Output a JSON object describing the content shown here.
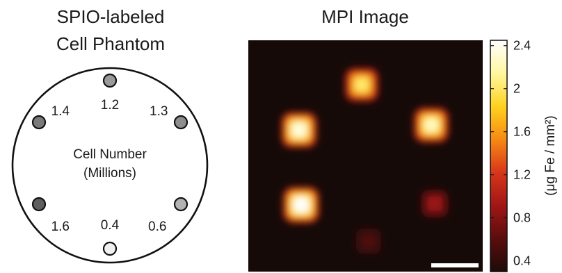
{
  "left_panel": {
    "title_line1": "SPIO-labeled",
    "title_line2": "Cell Phantom",
    "center_line1": "Cell Number",
    "center_line2": "(Millions)",
    "wells": [
      {
        "label": "1.2",
        "fill": "#9a9a9a"
      },
      {
        "label": "1.3",
        "fill": "#8d8d8d"
      },
      {
        "label": "0.6",
        "fill": "#b3b3b3"
      },
      {
        "label": "0.4",
        "fill": "#f0f0f0"
      },
      {
        "label": "1.6",
        "fill": "#5e5e5e"
      },
      {
        "label": "1.4",
        "fill": "#7a7a7a"
      }
    ]
  },
  "right_panel": {
    "title": "MPI Image",
    "background": "#160a08",
    "spots": [
      {
        "name": "spot-top",
        "intensity": 0.8
      },
      {
        "name": "spot-upper-right",
        "intensity": 0.9
      },
      {
        "name": "spot-lower-right",
        "intensity": 0.28
      },
      {
        "name": "spot-bottom",
        "intensity": 0.12
      },
      {
        "name": "spot-lower-left",
        "intensity": 1.0
      },
      {
        "name": "spot-upper-left",
        "intensity": 0.95
      }
    ],
    "scale_bar_color": "#ffffff"
  },
  "colorbar": {
    "ticks": [
      "2.4",
      "2",
      "1.6",
      "1.2",
      "0.8",
      "0.4"
    ],
    "tick_values": [
      2.4,
      2.0,
      1.6,
      1.2,
      0.8,
      0.4
    ],
    "range": [
      0.3,
      2.45
    ],
    "label": "(μg Fe / mm²)",
    "colors": [
      "#ffffff",
      "#fff7a0",
      "#ffd21f",
      "#f58a14",
      "#d8361a",
      "#a01616",
      "#5a0d0d",
      "#1e0b08"
    ]
  }
}
